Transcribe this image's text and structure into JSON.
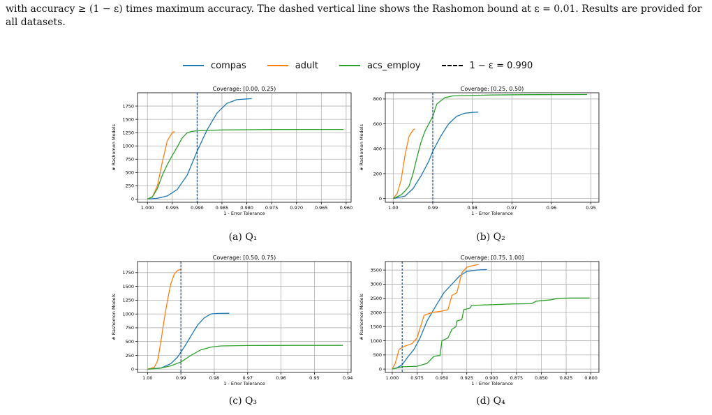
{
  "caption_text": "with accuracy ≥ (1 − ε) times maximum accuracy. The dashed vertical line shows the Rashomon bound at ε = 0.01. Results are provided for all datasets.",
  "legend": [
    {
      "label": "compas",
      "color": "#1f77b4",
      "style": "solid"
    },
    {
      "label": "adult",
      "color": "#ff7f0e",
      "style": "solid"
    },
    {
      "label": "acs_employ",
      "color": "#2ca02c",
      "style": "solid"
    },
    {
      "label": "1 − ε = 0.990",
      "color": "#000000",
      "style": "dashed"
    }
  ],
  "subcaptions": [
    "(a) Q₁",
    "(b) Q₂",
    "(c) Q₃",
    "(d) Q₄"
  ],
  "chart_data": [
    {
      "type": "line",
      "title": "Coverage: [0.00, 0.25)",
      "xlabel": "1 - Error Tolerance",
      "ylabel": "# Rashomon Models",
      "xlim": [
        1.002,
        0.959
      ],
      "ylim": [
        -60,
        2000
      ],
      "xticks": [
        1.0,
        0.995,
        0.99,
        0.985,
        0.98,
        0.975,
        0.97,
        0.965,
        0.96
      ],
      "xtick_labels": [
        "1.000",
        "0.995",
        "0.990",
        "0.985",
        "0.980",
        "0.975",
        "0.970",
        "0.965",
        "0.960"
      ],
      "yticks": [
        0,
        250,
        500,
        750,
        1000,
        1250,
        1500,
        1750
      ],
      "vline": 0.99,
      "grid": true,
      "series": [
        {
          "name": "compas",
          "color": "#1f77b4",
          "points": [
            [
              1.0,
              0
            ],
            [
              0.998,
              15
            ],
            [
              0.996,
              60
            ],
            [
              0.994,
              180
            ],
            [
              0.992,
              450
            ],
            [
              0.99,
              900
            ],
            [
              0.988,
              1300
            ],
            [
              0.986,
              1620
            ],
            [
              0.984,
              1800
            ],
            [
              0.982,
              1870
            ],
            [
              0.98,
              1885
            ],
            [
              0.979,
              1890
            ]
          ]
        },
        {
          "name": "adult",
          "color": "#ff7f0e",
          "points": [
            [
              1.0,
              0
            ],
            [
              0.999,
              40
            ],
            [
              0.998,
              250
            ],
            [
              0.997,
              700
            ],
            [
              0.996,
              1100
            ],
            [
              0.995,
              1250
            ],
            [
              0.9945,
              1270
            ]
          ]
        },
        {
          "name": "acs_employ",
          "color": "#2ca02c",
          "points": [
            [
              1.0,
              0
            ],
            [
              0.999,
              40
            ],
            [
              0.998,
              200
            ],
            [
              0.997,
              450
            ],
            [
              0.996,
              650
            ],
            [
              0.995,
              820
            ],
            [
              0.994,
              980
            ],
            [
              0.993,
              1150
            ],
            [
              0.992,
              1250
            ],
            [
              0.991,
              1275
            ],
            [
              0.99,
              1285
            ],
            [
              0.985,
              1300
            ],
            [
              0.975,
              1308
            ],
            [
              0.965,
              1310
            ],
            [
              0.9605,
              1310
            ]
          ]
        }
      ]
    },
    {
      "type": "line",
      "title": "Coverage: [0.25, 0.50)",
      "xlabel": "1 - Error Tolerance",
      "ylabel": "# Rashomon Models",
      "xlim": [
        1.002,
        0.948
      ],
      "ylim": [
        -30,
        850
      ],
      "xticks": [
        1.0,
        0.99,
        0.98,
        0.97,
        0.96,
        0.95
      ],
      "xtick_labels": [
        "1.00",
        "0.99",
        "0.98",
        "0.97",
        "0.96",
        "0.95"
      ],
      "yticks": [
        0,
        200,
        400,
        600,
        800
      ],
      "vline": 0.99,
      "grid": true,
      "series": [
        {
          "name": "compas",
          "color": "#1f77b4",
          "points": [
            [
              1.0,
              0
            ],
            [
              0.997,
              20
            ],
            [
              0.995,
              80
            ],
            [
              0.993,
              180
            ],
            [
              0.991,
              300
            ],
            [
              0.99,
              380
            ],
            [
              0.988,
              500
            ],
            [
              0.986,
              600
            ],
            [
              0.984,
              660
            ],
            [
              0.982,
              685
            ],
            [
              0.98,
              692
            ],
            [
              0.9785,
              695
            ]
          ]
        },
        {
          "name": "adult",
          "color": "#ff7f0e",
          "points": [
            [
              1.0,
              0
            ],
            [
              0.999,
              40
            ],
            [
              0.998,
              150
            ],
            [
              0.997,
              350
            ],
            [
              0.996,
              500
            ],
            [
              0.995,
              550
            ],
            [
              0.9945,
              560
            ]
          ]
        },
        {
          "name": "acs_employ",
          "color": "#2ca02c",
          "points": [
            [
              1.0,
              0
            ],
            [
              0.998,
              30
            ],
            [
              0.997,
              60
            ],
            [
              0.996,
              100
            ],
            [
              0.995,
              200
            ],
            [
              0.994,
              330
            ],
            [
              0.993,
              450
            ],
            [
              0.992,
              540
            ],
            [
              0.991,
              600
            ],
            [
              0.99,
              660
            ],
            [
              0.989,
              760
            ],
            [
              0.987,
              810
            ],
            [
              0.985,
              825
            ],
            [
              0.975,
              832
            ],
            [
              0.965,
              835
            ],
            [
              0.951,
              836
            ]
          ]
        }
      ]
    },
    {
      "type": "line",
      "title": "Coverage: [0.50, 0.75)",
      "xlabel": "1 - Error Tolerance",
      "ylabel": "# Rashomon Models",
      "xlim": [
        1.003,
        0.939
      ],
      "ylim": [
        -60,
        1950
      ],
      "xticks": [
        1.0,
        0.99,
        0.98,
        0.97,
        0.96,
        0.95,
        0.94
      ],
      "xtick_labels": [
        "1.00",
        "0.99",
        "0.98",
        "0.97",
        "0.96",
        "0.95",
        "0.94"
      ],
      "yticks": [
        0,
        250,
        500,
        750,
        1000,
        1250,
        1500,
        1750
      ],
      "vline": 0.99,
      "grid": true,
      "series": [
        {
          "name": "compas",
          "color": "#1f77b4",
          "points": [
            [
              1.0,
              0
            ],
            [
              0.996,
              20
            ],
            [
              0.993,
              100
            ],
            [
              0.991,
              220
            ],
            [
              0.989,
              400
            ],
            [
              0.987,
              600
            ],
            [
              0.985,
              800
            ],
            [
              0.983,
              930
            ],
            [
              0.981,
              1000
            ],
            [
              0.979,
              1010
            ],
            [
              0.9755,
              1012
            ]
          ]
        },
        {
          "name": "adult",
          "color": "#ff7f0e",
          "points": [
            [
              1.0,
              0
            ],
            [
              0.998,
              30
            ],
            [
              0.997,
              150
            ],
            [
              0.996,
              500
            ],
            [
              0.995,
              900
            ],
            [
              0.994,
              1250
            ],
            [
              0.993,
              1550
            ],
            [
              0.992,
              1720
            ],
            [
              0.991,
              1790
            ],
            [
              0.99,
              1810
            ]
          ]
        },
        {
          "name": "acs_employ",
          "color": "#2ca02c",
          "points": [
            [
              1.0,
              0
            ],
            [
              0.996,
              20
            ],
            [
              0.993,
              60
            ],
            [
              0.99,
              130
            ],
            [
              0.987,
              250
            ],
            [
              0.984,
              350
            ],
            [
              0.981,
              400
            ],
            [
              0.978,
              420
            ],
            [
              0.97,
              428
            ],
            [
              0.955,
              430
            ],
            [
              0.9415,
              430
            ]
          ]
        }
      ]
    },
    {
      "type": "line",
      "title": "Coverage: [0.75, 1.00]",
      "xlabel": "1 - Error Tolerance",
      "ylabel": "# Rashomon Models",
      "xlim": [
        1.007,
        0.792
      ],
      "ylim": [
        -120,
        3800
      ],
      "xticks": [
        1.0,
        0.975,
        0.95,
        0.925,
        0.9,
        0.875,
        0.85,
        0.825,
        0.8
      ],
      "xtick_labels": [
        "1.000",
        "0.975",
        "0.950",
        "0.925",
        "0.900",
        "0.875",
        "0.850",
        "0.825",
        "0.800"
      ],
      "yticks": [
        0,
        500,
        1000,
        1500,
        2000,
        2500,
        3000,
        3500
      ],
      "vline": 0.99,
      "grid": true,
      "series": [
        {
          "name": "compas",
          "color": "#1f77b4",
          "points": [
            [
              1.0,
              0
            ],
            [
              0.995,
              50
            ],
            [
              0.99,
              150
            ],
            [
              0.985,
              400
            ],
            [
              0.978,
              700
            ],
            [
              0.972,
              1100
            ],
            [
              0.965,
              1700
            ],
            [
              0.96,
              2000
            ],
            [
              0.955,
              2300
            ],
            [
              0.948,
              2700
            ],
            [
              0.94,
              3000
            ],
            [
              0.932,
              3300
            ],
            [
              0.925,
              3450
            ],
            [
              0.915,
              3500
            ],
            [
              0.905,
              3520
            ]
          ]
        },
        {
          "name": "adult",
          "color": "#ff7f0e",
          "points": [
            [
              1.0,
              0
            ],
            [
              0.997,
              200
            ],
            [
              0.993,
              700
            ],
            [
              0.988,
              800
            ],
            [
              0.98,
              900
            ],
            [
              0.975,
              1100
            ],
            [
              0.968,
              1900
            ],
            [
              0.96,
              2000
            ],
            [
              0.95,
              2050
            ],
            [
              0.944,
              2100
            ],
            [
              0.94,
              2600
            ],
            [
              0.935,
              2700
            ],
            [
              0.93,
              3400
            ],
            [
              0.925,
              3600
            ],
            [
              0.92,
              3650
            ],
            [
              0.913,
              3700
            ]
          ]
        },
        {
          "name": "acs_employ",
          "color": "#2ca02c",
          "points": [
            [
              1.0,
              0
            ],
            [
              0.99,
              80
            ],
            [
              0.975,
              100
            ],
            [
              0.965,
              200
            ],
            [
              0.958,
              450
            ],
            [
              0.952,
              480
            ],
            [
              0.95,
              1000
            ],
            [
              0.944,
              1100
            ],
            [
              0.94,
              1400
            ],
            [
              0.936,
              1500
            ],
            [
              0.935,
              1700
            ],
            [
              0.93,
              1750
            ],
            [
              0.928,
              2100
            ],
            [
              0.922,
              2150
            ],
            [
              0.92,
              2250
            ],
            [
              0.88,
              2300
            ],
            [
              0.86,
              2310
            ],
            [
              0.855,
              2400
            ],
            [
              0.84,
              2450
            ],
            [
              0.833,
              2500
            ],
            [
              0.82,
              2510
            ],
            [
              0.8015,
              2510
            ]
          ]
        }
      ]
    }
  ]
}
